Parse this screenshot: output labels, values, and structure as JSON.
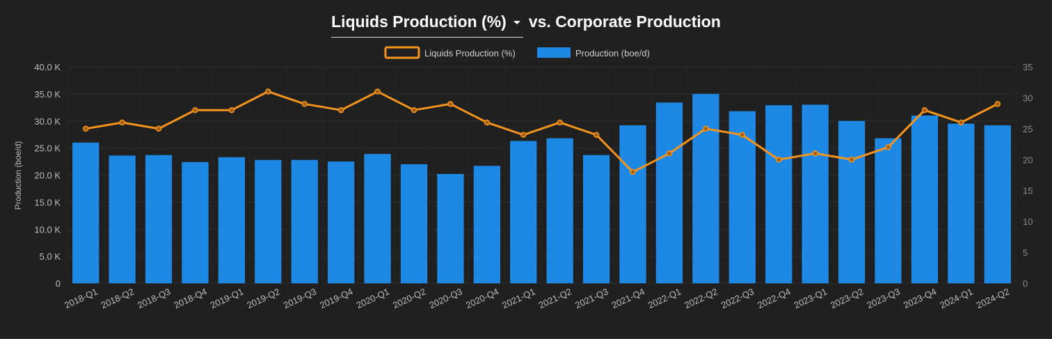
{
  "header": {
    "dropdown_label": "Liquids Production (%)",
    "title_suffix": "vs. Corporate Production"
  },
  "colors": {
    "background": "#202020",
    "bar": "#1e88e5",
    "line": "#f7941d",
    "grid": "#2e2e2e",
    "text": "#bdbdbd"
  },
  "chart_data": {
    "type": "bar",
    "categories": [
      "2018-Q1",
      "2018-Q2",
      "2018-Q3",
      "2018-Q4",
      "2019-Q1",
      "2019-Q2",
      "2019-Q3",
      "2019-Q4",
      "2020-Q1",
      "2020-Q2",
      "2020-Q3",
      "2020-Q4",
      "2021-Q1",
      "2021-Q2",
      "2021-Q3",
      "2021-Q4",
      "2022-Q1",
      "2022-Q2",
      "2022-Q3",
      "2022-Q4",
      "2023-Q1",
      "2023-Q2",
      "2023-Q3",
      "2023-Q4",
      "2024-Q1",
      "2024-Q2"
    ],
    "series": [
      {
        "name": "Production (boe/d)",
        "type": "bar",
        "axis": "left",
        "values": [
          26000,
          23600,
          23700,
          22400,
          23300,
          22800,
          22800,
          22500,
          23900,
          22000,
          20200,
          21700,
          26300,
          26800,
          23700,
          29200,
          33400,
          35000,
          31800,
          32900,
          33000,
          30000,
          26800,
          31000,
          29500,
          29200
        ]
      },
      {
        "name": "Liquids Production (%)",
        "type": "line",
        "axis": "right",
        "values": [
          25,
          26,
          25,
          28,
          28,
          31,
          29,
          28,
          31,
          28,
          29,
          26,
          24,
          26,
          24,
          18,
          21,
          25,
          24,
          20,
          21,
          20,
          22,
          28,
          26,
          29
        ]
      }
    ],
    "ylabel": "Production (boe/d)",
    "ylim": [
      0,
      40000
    ],
    "y_ticks": [
      "0",
      "5.0 K",
      "10.0 K",
      "15.0 K",
      "20.0 K",
      "25.0 K",
      "30.0 K",
      "35.0 K",
      "40.0 K"
    ],
    "y2lim": [
      0,
      35
    ],
    "y2_ticks": [
      "0",
      "5",
      "10",
      "15",
      "20",
      "25",
      "30",
      "35"
    ],
    "legend": {
      "position": "top-center"
    },
    "grid": true
  }
}
